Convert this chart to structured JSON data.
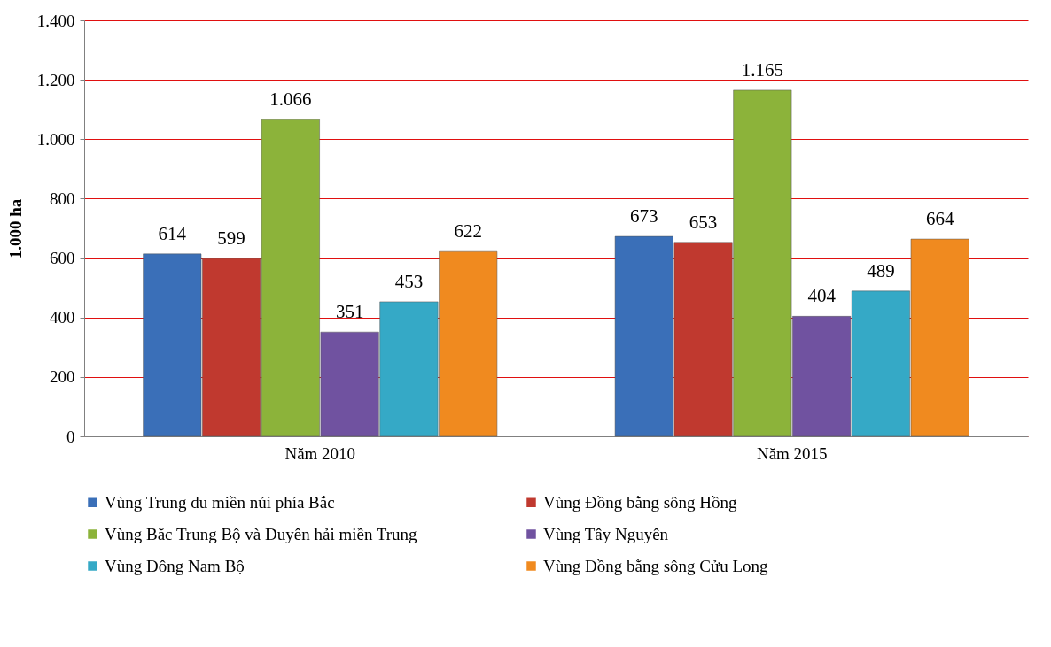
{
  "chart_data": {
    "type": "bar",
    "ylabel": "1.000 ha",
    "categories": [
      "Năm 2010",
      "Năm 2015"
    ],
    "series": [
      {
        "name": "Vùng Trung du miền núi phía Bắc",
        "color": "#3a6fb8",
        "values": [
          614,
          673
        ],
        "value_labels": [
          "614",
          "673"
        ]
      },
      {
        "name": "Vùng Đồng bằng sông Hồng",
        "color": "#c0392f",
        "values": [
          599,
          653
        ],
        "value_labels": [
          "599",
          "653"
        ]
      },
      {
        "name": "Vùng Bắc Trung Bộ và Duyên hải miền Trung",
        "color": "#8cb33a",
        "values": [
          1066,
          1165
        ],
        "value_labels": [
          "1.066",
          "1.165"
        ]
      },
      {
        "name": "Vùng Tây Nguyên",
        "color": "#7052a0",
        "values": [
          351,
          404
        ],
        "value_labels": [
          "351",
          "404"
        ]
      },
      {
        "name": "Vùng Đông Nam Bộ",
        "color": "#35a9c6",
        "values": [
          453,
          489
        ],
        "value_labels": [
          "453",
          "489"
        ]
      },
      {
        "name": "Vùng Đồng bằng sông Cửu Long",
        "color": "#f08a1f",
        "values": [
          622,
          664
        ],
        "value_labels": [
          "622",
          "664"
        ]
      }
    ],
    "ylim": [
      0,
      1400
    ],
    "yticks": [
      0,
      200,
      400,
      600,
      800,
      {
        "value": 1000,
        "label": "1.000"
      },
      {
        "value": 1200,
        "label": "1.200"
      },
      {
        "value": 1400,
        "label": "1.400"
      }
    ],
    "grid": "y",
    "legend": "bottom"
  }
}
